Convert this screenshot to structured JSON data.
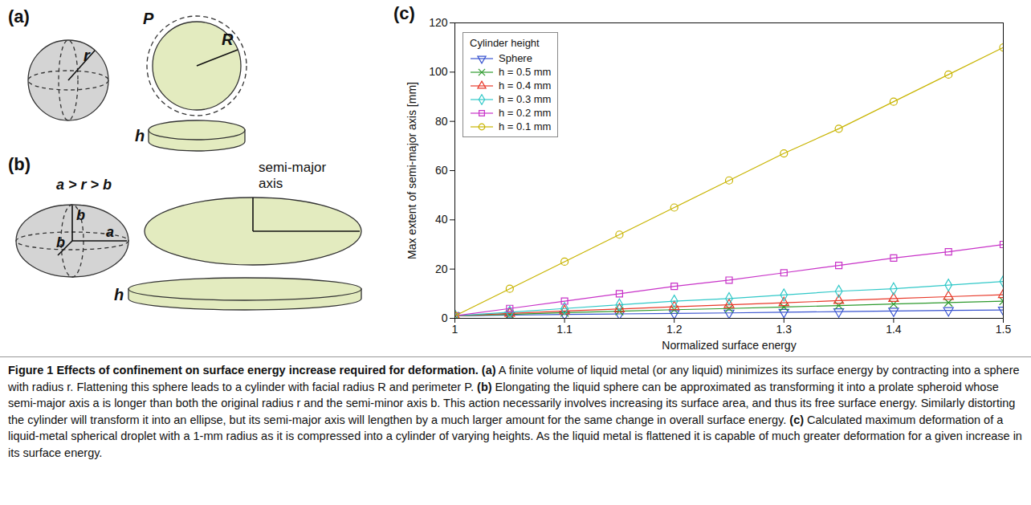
{
  "panels": {
    "a": {
      "label": "(a)",
      "sphere_radius": "r",
      "perimeter": "P",
      "radius": "R",
      "height": "h"
    },
    "b": {
      "label": "(b)",
      "relation": "a > r > b",
      "semi_minor": "b",
      "semi_minor_2": "b",
      "semi_major": "a",
      "ellipse_axis": "semi-major axis",
      "height": "h"
    }
  },
  "chart_data": {
    "panel_label": "(c)",
    "type": "line",
    "xlabel": "Normalized surface energy",
    "ylabel": "Max extent of semi-major axis [mm]",
    "legend_title": "Cylinder height",
    "legend": "upper left",
    "x": [
      1.0,
      1.05,
      1.1,
      1.15,
      1.2,
      1.25,
      1.3,
      1.35,
      1.4,
      1.45,
      1.5
    ],
    "series": [
      {
        "name": "Sphere",
        "color": "#3a55d0",
        "marker": "triangle-down",
        "values": [
          1,
          1.3,
          1.6,
          1.8,
          2,
          2.2,
          2.5,
          2.7,
          3,
          3.2,
          3.4
        ]
      },
      {
        "name": "h = 0.5 mm",
        "color": "#2e9a2e",
        "marker": "x",
        "values": [
          1,
          1.6,
          2.3,
          2.9,
          3.5,
          4,
          4.6,
          5.2,
          5.8,
          6.4,
          7
        ]
      },
      {
        "name": "h = 0.4 mm",
        "color": "#e8392a",
        "marker": "triangle",
        "values": [
          1,
          2,
          3,
          3.8,
          4.7,
          5.5,
          6.3,
          7.2,
          8,
          8.8,
          9.6
        ]
      },
      {
        "name": "h = 0.3 mm",
        "color": "#30c8c8",
        "marker": "diamond",
        "values": [
          1,
          2.5,
          4,
          5.5,
          7,
          8,
          9.5,
          11,
          12,
          13.5,
          15
        ]
      },
      {
        "name": "h = 0.2 mm",
        "color": "#c833c8",
        "marker": "square",
        "values": [
          1,
          4,
          7,
          10,
          13,
          15.5,
          18.5,
          21.5,
          24.5,
          27,
          30
        ]
      },
      {
        "name": "h = 0.1 mm",
        "color": "#c8b400",
        "marker": "circle",
        "values": [
          1,
          12,
          23,
          34,
          45,
          56,
          67,
          77,
          88,
          99,
          110
        ]
      }
    ],
    "xlim": [
      1,
      1.5
    ],
    "xticks": [
      1,
      1.1,
      1.2,
      1.3,
      1.4,
      1.5
    ],
    "ylim": [
      0,
      120
    ],
    "yticks": [
      0,
      20,
      40,
      60,
      80,
      100,
      120
    ]
  },
  "caption": {
    "title": "Figure 1 Effects of confinement on surface energy increase required for deformation.",
    "parts": [
      {
        "label": "(a)",
        "text": "A finite volume of liquid metal (or any liquid) minimizes its surface energy by contracting into a sphere with radius r. Flattening this sphere leads to a cylinder with facial radius R and perimeter P."
      },
      {
        "label": "(b)",
        "text": "Elongating the liquid sphere can be approximated as transforming it into a prolate spheroid whose semi-major axis a is longer than both the original radius r and the semi-minor axis b. This action necessarily involves increasing its surface area, and thus its free surface energy. Similarly distorting the cylinder will transform it into an ellipse, but its semi-major axis will lengthen by a much larger amount for the same change in overall surface energy."
      },
      {
        "label": "(c)",
        "text": "Calculated maximum deformation of a liquid-metal spherical droplet with a 1-mm radius as it is compressed into a cylinder of varying heights. As the liquid metal is flattened it is capable of much greater deformation for a given increase in its surface energy."
      }
    ]
  }
}
